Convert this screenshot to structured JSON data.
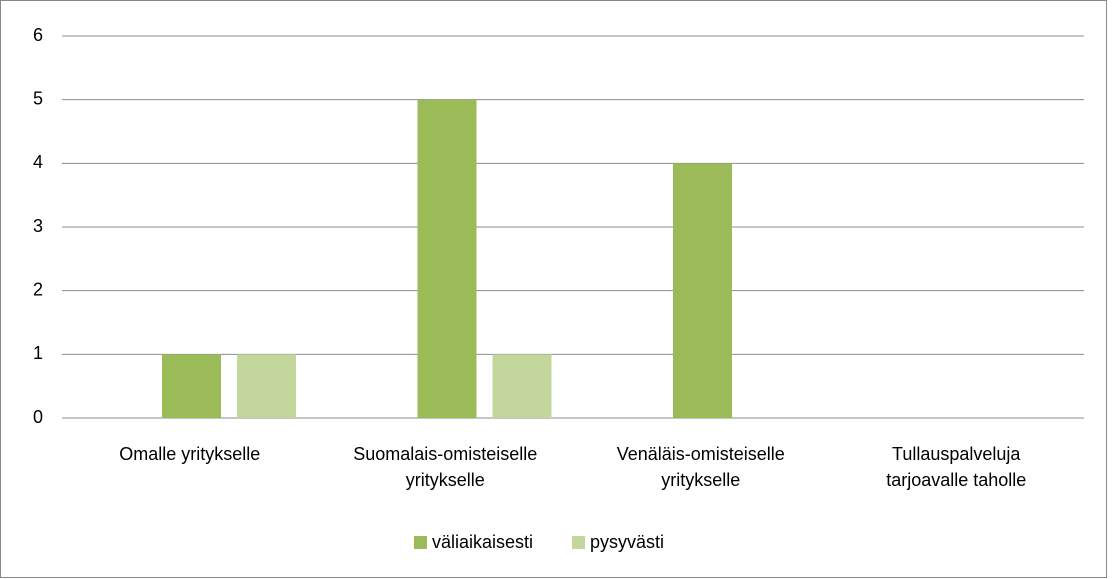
{
  "chart_data": {
    "type": "bar",
    "categories": [
      "Omalle yritykselle",
      "Suomalais-omisteiselle\nyritykselle",
      "Venäläis-omisteiselle\nyritykselle",
      "Tullauspalveluja\ntarjoavalle taholle"
    ],
    "series": [
      {
        "name": "väliaikaisesti",
        "color": "#9bbb59",
        "values": [
          1,
          5,
          4,
          0
        ]
      },
      {
        "name": "pysyvästi",
        "color": "#c3d69b",
        "values": [
          1,
          1,
          0,
          0
        ]
      }
    ],
    "ylim": [
      0,
      6
    ],
    "yticks": [
      0,
      1,
      2,
      3,
      4,
      5,
      6
    ],
    "grid": true,
    "legend": "bottom"
  }
}
